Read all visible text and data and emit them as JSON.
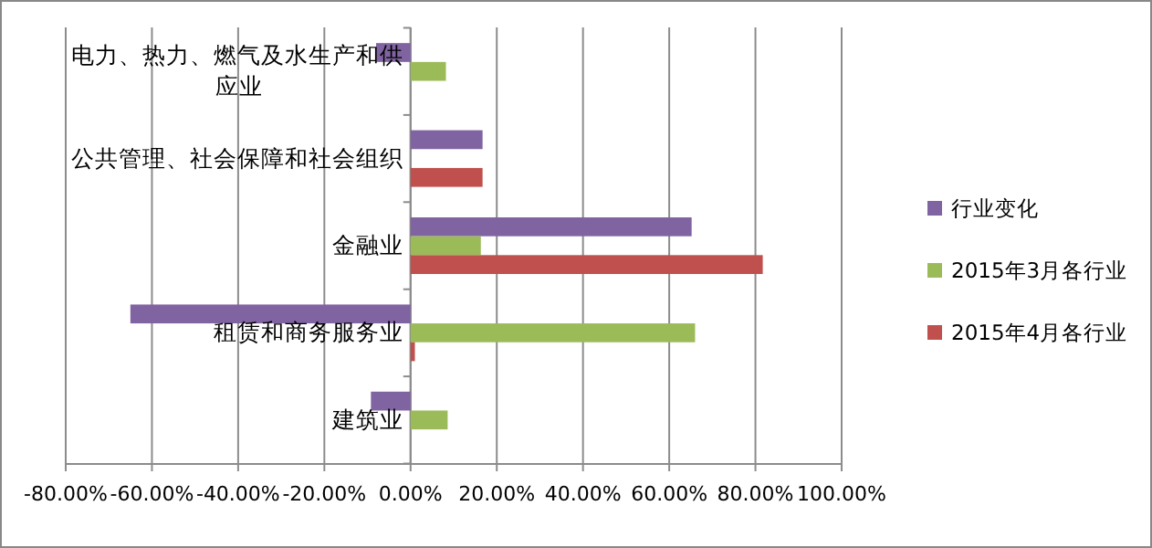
{
  "chart_data": {
    "type": "bar",
    "orientation": "horizontal",
    "categories": [
      "电力、热力、燃气及水生产和供应业",
      "公共管理、社会保障和社会组织",
      "金融业",
      "租赁和商务服务业",
      "建筑业"
    ],
    "series": [
      {
        "name": "行业变化",
        "color": "#8064a2",
        "values": [
          -8,
          16.7,
          65.2,
          -65,
          -9.2
        ]
      },
      {
        "name": "2015年3月各行业",
        "color": "#9bbb59",
        "values": [
          8.2,
          null,
          16.3,
          66,
          8.6
        ]
      },
      {
        "name": "2015年4月各行业",
        "color": "#c0504d",
        "values": [
          null,
          16.7,
          81.7,
          1,
          null
        ]
      }
    ],
    "xlim": [
      -80,
      100
    ],
    "xticks": [
      {
        "value": -80,
        "label": "-80.00%"
      },
      {
        "value": -60,
        "label": "-60.00%"
      },
      {
        "value": -40,
        "label": "-40.00%"
      },
      {
        "value": -20,
        "label": "-20.00%"
      },
      {
        "value": 0,
        "label": "0.00%"
      },
      {
        "value": 20,
        "label": "20.00%"
      },
      {
        "value": 40,
        "label": "40.00%"
      },
      {
        "value": 60,
        "label": "60.00%"
      },
      {
        "value": 80,
        "label": "80.00%"
      },
      {
        "value": 100,
        "label": "100.00%"
      }
    ],
    "grid": "x",
    "legend": "right"
  }
}
